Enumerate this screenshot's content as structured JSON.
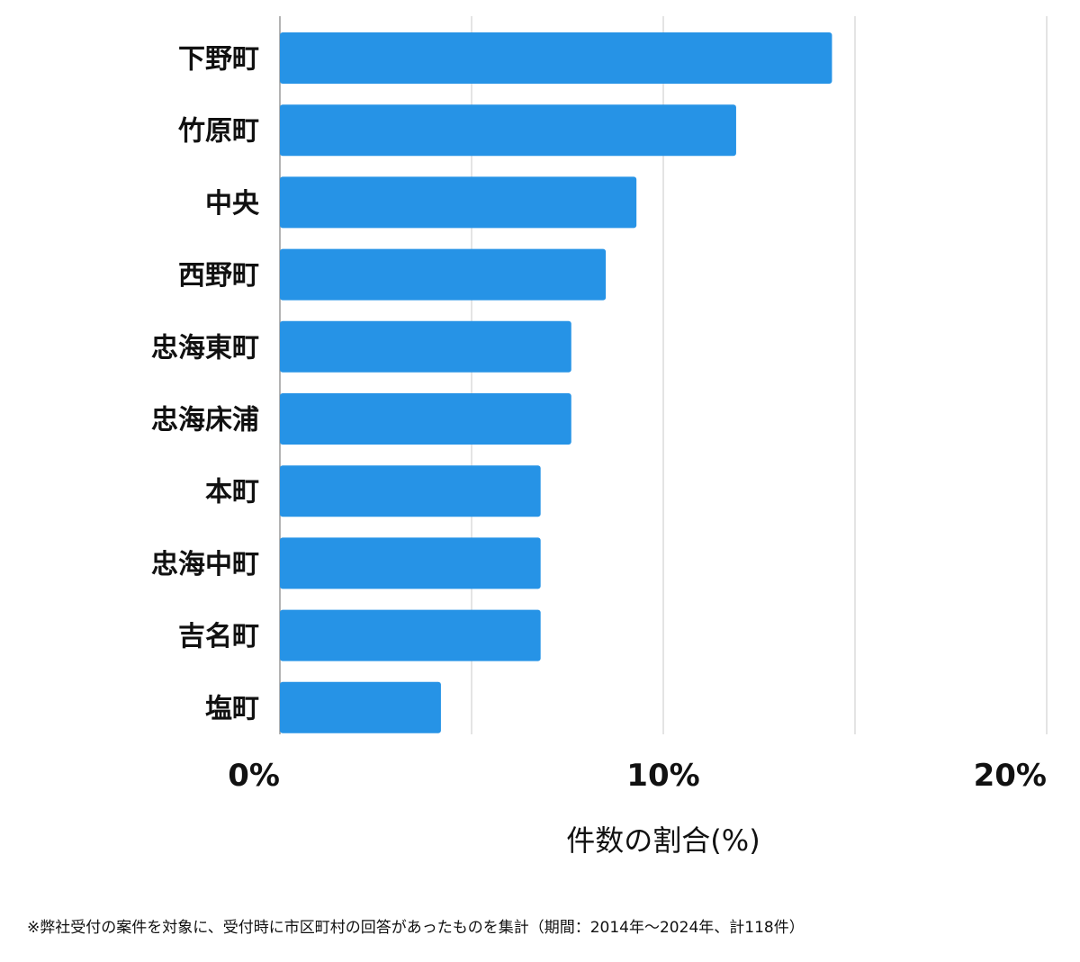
{
  "chart_data": {
    "type": "bar",
    "orientation": "horizontal",
    "categories": [
      "下野町",
      "竹原町",
      "中央",
      "西野町",
      "忠海東町",
      "忠海床浦",
      "本町",
      "忠海中町",
      "吉名町",
      "塩町"
    ],
    "values": [
      14.4,
      11.9,
      9.3,
      8.5,
      7.6,
      7.6,
      6.8,
      6.8,
      6.8,
      4.2
    ],
    "xlabel": "件数の割合(%)",
    "xlim": [
      0,
      20
    ],
    "xticks": [
      {
        "value": 0,
        "label": "0%"
      },
      {
        "value": 10,
        "label": "10%"
      },
      {
        "value": 20,
        "label": "20%"
      }
    ],
    "gridlines": [
      5,
      10,
      15,
      20
    ],
    "grid": true,
    "bar_color": "#2693e6"
  },
  "footnote": "※弊社受付の案件を対象に、受付時に市区町村の回答があったものを集計（期間：2014年〜2024年、計118件）"
}
